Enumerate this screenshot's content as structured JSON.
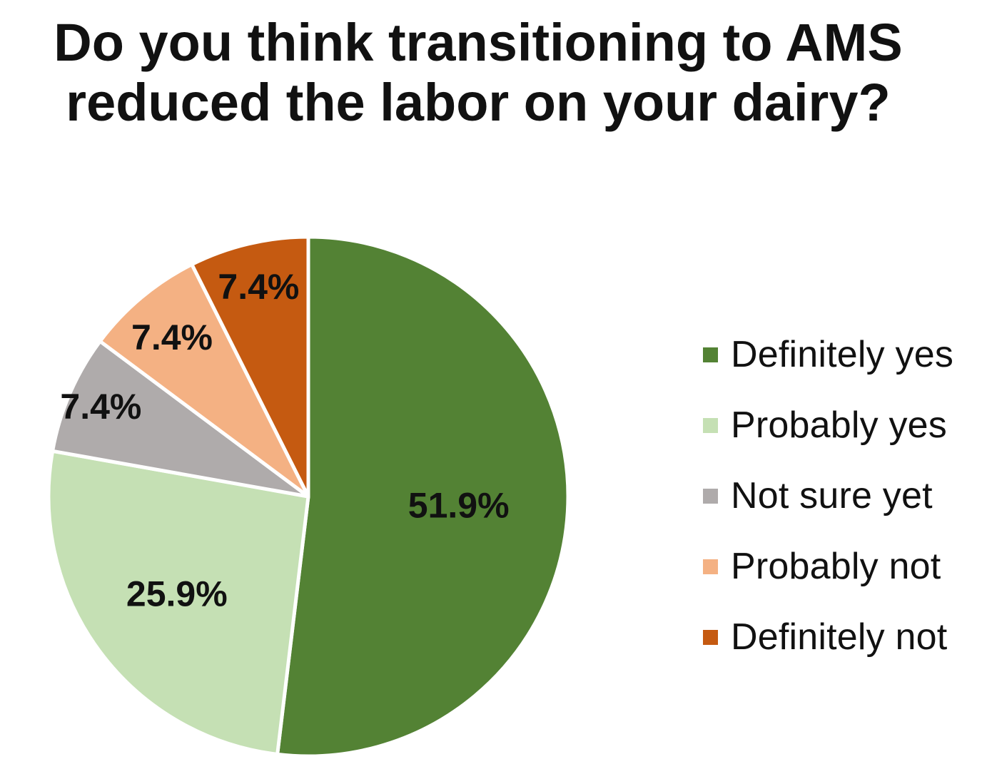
{
  "chart_data": {
    "type": "pie",
    "title_lines": [
      "Do you think transitioning to AMS",
      "reduced the labor on your dairy?"
    ],
    "slices": [
      {
        "label": "Definitely yes",
        "value": 51.9,
        "value_label": "51.9%",
        "color": "#538234"
      },
      {
        "label": "Probably yes",
        "value": 25.9,
        "value_label": "25.9%",
        "color": "#c5e0b4"
      },
      {
        "label": "Not sure yet",
        "value": 7.4,
        "value_label": "7.4%",
        "color": "#afabab"
      },
      {
        "label": "Probably not",
        "value": 7.4,
        "value_label": "7.4%",
        "color": "#f4b183"
      },
      {
        "label": "Definitely not",
        "value": 7.4,
        "value_label": "7.4%",
        "color": "#c55a11"
      }
    ],
    "start_angle": "12 o'clock",
    "direction": "clockwise",
    "legend_position": "right",
    "slice_border_color": "#ffffff"
  }
}
